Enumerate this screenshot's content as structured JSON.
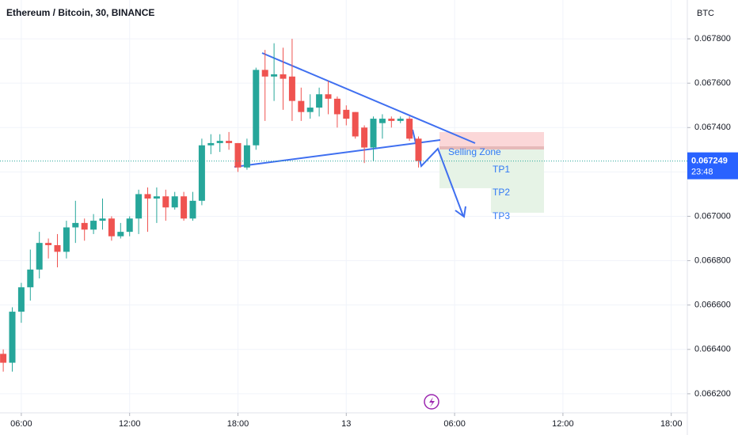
{
  "chart_data": {
    "type": "candlestick",
    "title": "Ethereum / Bitcoin, 30, BINANCE",
    "currency": "BTC",
    "x": [
      5,
      5.5,
      6,
      6.5,
      7,
      7.5,
      8,
      8.5,
      9,
      9.5,
      10,
      10.5,
      11,
      11.5,
      12,
      12.5,
      13,
      13.5,
      14,
      14.5,
      15,
      15.5,
      16,
      16.5,
      17,
      17.5,
      18,
      18.5,
      19,
      19.5,
      20,
      20.5,
      21,
      21.5,
      22,
      22.5,
      23,
      23.5,
      24,
      24.5,
      25,
      25.5,
      26,
      26.5,
      27,
      27.5,
      28
    ],
    "open": [
      0.06638,
      0.06634,
      0.06657,
      0.06668,
      0.06676,
      0.06688,
      0.06687,
      0.06684,
      0.06695,
      0.06697,
      0.06694,
      0.06698,
      0.06699,
      0.06691,
      0.06693,
      0.06699,
      0.0671,
      0.06708,
      0.06709,
      0.06704,
      0.06709,
      0.06699,
      0.06707,
      0.06732,
      0.06733,
      0.06734,
      0.06733,
      0.06722,
      0.06732,
      0.06766,
      0.06763,
      0.06764,
      0.06763,
      0.06752,
      0.06747,
      0.06749,
      0.06755,
      0.06753,
      0.06748,
      0.06747,
      0.0674,
      0.06731,
      0.06742,
      0.06744,
      0.06743,
      0.06744,
      0.06735
    ],
    "high": [
      0.0664,
      0.06659,
      0.0667,
      0.06685,
      0.06693,
      0.0669,
      0.06692,
      0.06698,
      0.06707,
      0.06699,
      0.06701,
      0.06708,
      0.067,
      0.06697,
      0.067,
      0.06712,
      0.06713,
      0.06713,
      0.06712,
      0.06711,
      0.06711,
      0.06711,
      0.06735,
      0.06737,
      0.06737,
      0.06738,
      0.06733,
      0.06735,
      0.06767,
      0.06775,
      0.06778,
      0.06776,
      0.0678,
      0.06758,
      0.06755,
      0.06758,
      0.06761,
      0.06754,
      0.0675,
      0.06747,
      0.06741,
      0.06745,
      0.06746,
      0.06745,
      0.06745,
      0.06745,
      0.06736
    ],
    "low": [
      0.0663,
      0.0663,
      0.06652,
      0.06662,
      0.06672,
      0.06681,
      0.06677,
      0.06681,
      0.06688,
      0.06689,
      0.06692,
      0.06694,
      0.06689,
      0.0669,
      0.06691,
      0.06692,
      0.06693,
      0.06697,
      0.06698,
      0.06703,
      0.06698,
      0.06698,
      0.06705,
      0.06728,
      0.06729,
      0.0673,
      0.0672,
      0.06721,
      0.0673,
      0.06743,
      0.06752,
      0.06748,
      0.06743,
      0.06743,
      0.06744,
      0.06745,
      0.06746,
      0.0674,
      0.06741,
      0.06735,
      0.06724,
      0.06725,
      0.06735,
      0.0674,
      0.06742,
      0.06734,
      0.06722
    ],
    "close": [
      0.06634,
      0.06657,
      0.06668,
      0.06676,
      0.06688,
      0.06687,
      0.06684,
      0.06695,
      0.06697,
      0.06694,
      0.06698,
      0.06699,
      0.06691,
      0.06693,
      0.06699,
      0.0671,
      0.06708,
      0.06709,
      0.06704,
      0.06709,
      0.06699,
      0.06707,
      0.06732,
      0.06733,
      0.06734,
      0.06733,
      0.06722,
      0.06732,
      0.06766,
      0.06763,
      0.06764,
      0.06762,
      0.06752,
      0.06747,
      0.06749,
      0.06755,
      0.06753,
      0.06746,
      0.06744,
      0.06736,
      0.06731,
      0.06744,
      0.06744,
      0.06743,
      0.06744,
      0.06735,
      0.067249
    ],
    "up_color": "#26a69a",
    "down_color": "#ef5350",
    "xlim": [
      4.82,
      42.89
    ],
    "xticks": [
      {
        "value": 6,
        "label": "06:00"
      },
      {
        "value": 12,
        "label": "12:00"
      },
      {
        "value": 18,
        "label": "18:00"
      },
      {
        "value": 24,
        "label": "13"
      },
      {
        "value": 30,
        "label": "06:00"
      },
      {
        "value": 36,
        "label": "12:00"
      },
      {
        "value": 42,
        "label": "18:00"
      }
    ],
    "ylim": [
      0.066114,
      0.067975
    ],
    "yticks": [
      {
        "value": 0.0662,
        "label": "0.066200"
      },
      {
        "value": 0.0664,
        "label": "0.066400"
      },
      {
        "value": 0.0666,
        "label": "0.066600"
      },
      {
        "value": 0.0668,
        "label": "0.066800"
      },
      {
        "value": 0.067,
        "label": "0.067000"
      },
      {
        "value": 0.0672,
        "label": "0.067200"
      },
      {
        "value": 0.0674,
        "label": "0.067400"
      },
      {
        "value": 0.0676,
        "label": "0.067600"
      },
      {
        "value": 0.0678,
        "label": "0.067800"
      }
    ],
    "grid": true,
    "last_price": 0.067249,
    "countdown": "23:48",
    "annotations": {
      "zone": "Selling Zone",
      "targets": [
        "TP1",
        "TP2",
        "TP3"
      ]
    }
  }
}
